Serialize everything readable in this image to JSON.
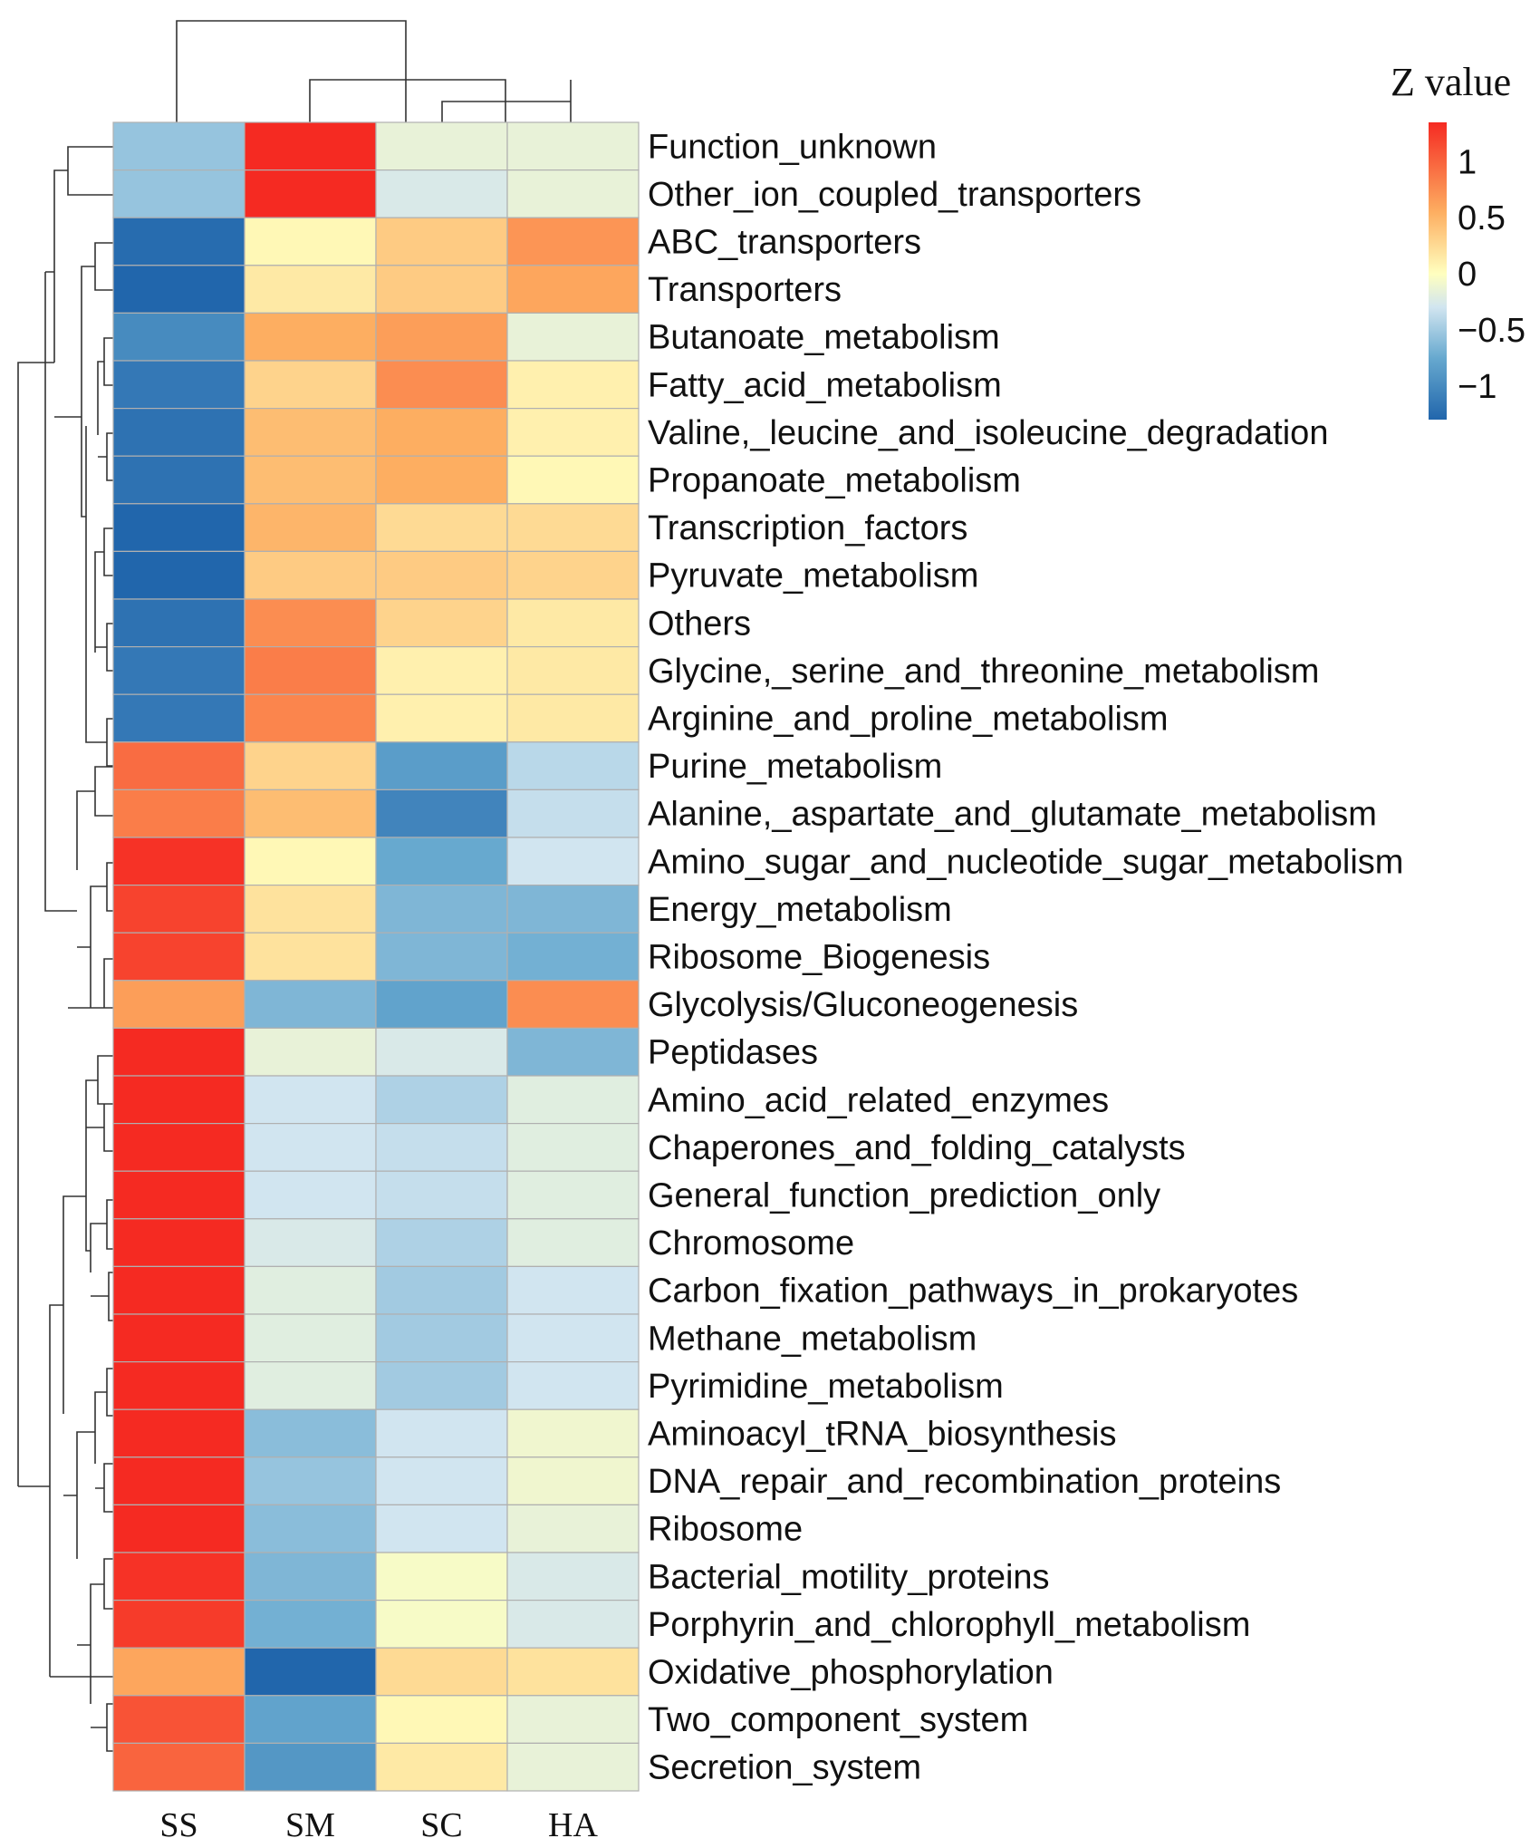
{
  "chart_data": {
    "type": "heatmap",
    "title": "",
    "legend_title": "Z value",
    "legend_ticks": [
      {
        "value": 1,
        "label": "1"
      },
      {
        "value": 0.5,
        "label": "0.5"
      },
      {
        "value": 0,
        "label": "0"
      },
      {
        "value": -0.5,
        "label": "−0.5"
      },
      {
        "value": -1,
        "label": "−1"
      }
    ],
    "value_range": [
      -1.3,
      1.35
    ],
    "color_stops": [
      {
        "value": -1.3,
        "color": "#2166ac"
      },
      {
        "value": -0.75,
        "color": "#67a9cf"
      },
      {
        "value": -0.3,
        "color": "#d1e5f0"
      },
      {
        "value": 0,
        "color": "#ffffbf"
      },
      {
        "value": 0.55,
        "color": "#fdae61"
      },
      {
        "value": 1.35,
        "color": "#f52a22"
      }
    ],
    "columns": [
      "SS",
      "SM",
      "SC",
      "HA"
    ],
    "rows": [
      "Function_unknown",
      "Other_ion_coupled_transporters",
      "ABC_transporters",
      "Transporters",
      "Butanoate_metabolism",
      "Fatty_acid_metabolism",
      "Valine,_leucine_and_isoleucine_degradation",
      "Propanoate_metabolism",
      "Transcription_factors",
      "Pyruvate_metabolism",
      "Others",
      "Glycine,_serine_and_threonine_metabolism",
      "Arginine_and_proline_metabolism",
      "Purine_metabolism",
      "Alanine,_aspartate_and_glutamate_metabolism",
      "Amino_sugar_and_nucleotide_sugar_metabolism",
      "Energy_metabolism",
      "Ribosome_Biogenesis",
      "Glycolysis/Gluconeogenesis",
      "Peptidases",
      "Amino_acid_related_enzymes",
      "Chaperones_and_folding_catalysts",
      "General_function_prediction_only",
      "Chromosome",
      "Carbon_fixation_pathways_in_prokaryotes",
      "Methane_metabolism",
      "Pyrimidine_metabolism",
      "Aminoacyl_tRNA_biosynthesis",
      "DNA_repair_and_recombination_proteins",
      "Ribosome",
      "Bacterial_motility_proteins",
      "Porphyrin_and_chlorophyll_metabolism",
      "Oxidative_phosphorylation",
      "Two_component_system",
      "Secretion_system"
    ],
    "values": [
      [
        -0.55,
        1.45,
        -0.15,
        -0.15
      ],
      [
        -0.55,
        1.45,
        -0.25,
        -0.15
      ],
      [
        -1.25,
        0.05,
        0.35,
        0.7
      ],
      [
        -1.3,
        0.15,
        0.35,
        0.6
      ],
      [
        -1.0,
        0.55,
        0.65,
        -0.15
      ],
      [
        -1.15,
        0.3,
        0.75,
        0.1
      ],
      [
        -1.2,
        0.45,
        0.55,
        0.1
      ],
      [
        -1.2,
        0.45,
        0.55,
        0.05
      ],
      [
        -1.3,
        0.5,
        0.25,
        0.25
      ],
      [
        -1.3,
        0.35,
        0.35,
        0.3
      ],
      [
        -1.2,
        0.75,
        0.3,
        0.15
      ],
      [
        -1.15,
        0.85,
        0.1,
        0.15
      ],
      [
        -1.15,
        0.8,
        0.1,
        0.15
      ],
      [
        0.95,
        0.3,
        -0.85,
        -0.4
      ],
      [
        0.85,
        0.45,
        -1.05,
        -0.35
      ],
      [
        1.3,
        0.05,
        -0.75,
        -0.3
      ],
      [
        1.2,
        0.2,
        -0.65,
        -0.65
      ],
      [
        1.2,
        0.2,
        -0.65,
        -0.7
      ],
      [
        0.65,
        -0.65,
        -0.8,
        0.75
      ],
      [
        1.4,
        -0.15,
        -0.25,
        -0.65
      ],
      [
        1.4,
        -0.3,
        -0.45,
        -0.2
      ],
      [
        1.4,
        -0.3,
        -0.35,
        -0.2
      ],
      [
        1.4,
        -0.3,
        -0.35,
        -0.2
      ],
      [
        1.4,
        -0.25,
        -0.45,
        -0.2
      ],
      [
        1.4,
        -0.2,
        -0.5,
        -0.3
      ],
      [
        1.4,
        -0.2,
        -0.5,
        -0.3
      ],
      [
        1.4,
        -0.2,
        -0.5,
        -0.3
      ],
      [
        1.4,
        -0.6,
        -0.3,
        -0.1
      ],
      [
        1.4,
        -0.55,
        -0.3,
        -0.1
      ],
      [
        1.4,
        -0.6,
        -0.3,
        -0.15
      ],
      [
        1.3,
        -0.65,
        -0.05,
        -0.25
      ],
      [
        1.25,
        -0.7,
        -0.05,
        -0.25
      ],
      [
        0.6,
        -1.3,
        0.25,
        0.2
      ],
      [
        1.1,
        -0.8,
        0.05,
        -0.15
      ],
      [
        1.0,
        -0.9,
        0.15,
        -0.15
      ]
    ]
  }
}
